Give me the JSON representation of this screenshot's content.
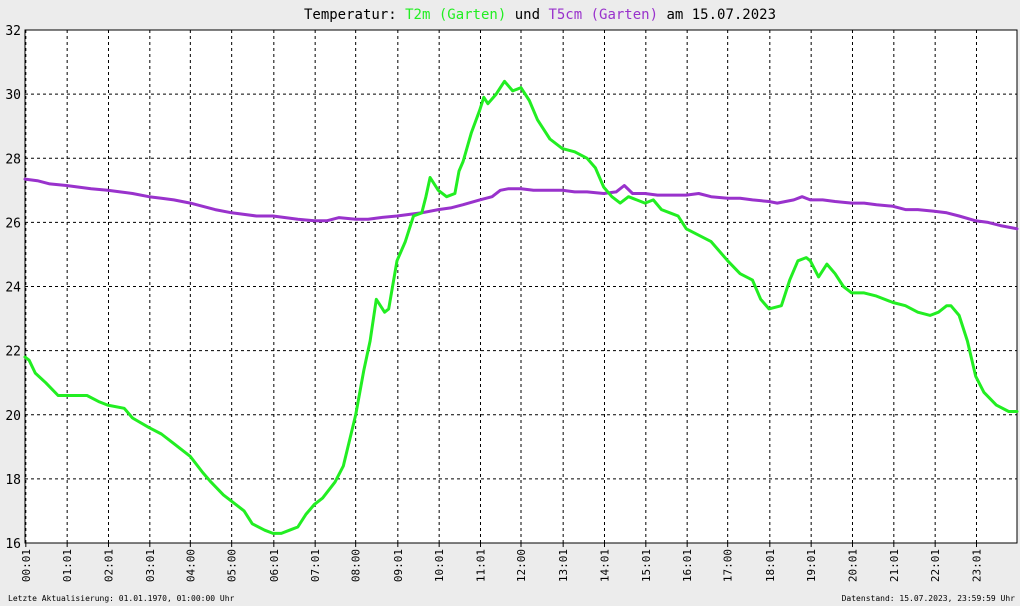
{
  "chart_data": {
    "type": "line",
    "title_parts": [
      {
        "text": "Temperatur: ",
        "color": "#000000"
      },
      {
        "text": "T2m (Garten)",
        "color": "#22ee22"
      },
      {
        "text": " und ",
        "color": "#000000"
      },
      {
        "text": "T5cm (Garten)",
        "color": "#9932cc"
      },
      {
        "text": " am 15.07.2023",
        "color": "#000000"
      }
    ],
    "ylim": [
      16,
      32
    ],
    "y_ticks": [
      16,
      18,
      20,
      22,
      24,
      26,
      28,
      30,
      32
    ],
    "xlim": [
      0,
      24
    ],
    "x_ticks": [
      {
        "pos": 0.02,
        "label": "00:01"
      },
      {
        "pos": 1.02,
        "label": "01:01"
      },
      {
        "pos": 2.02,
        "label": "02:01"
      },
      {
        "pos": 3.02,
        "label": "03:01"
      },
      {
        "pos": 4.0,
        "label": "04:00"
      },
      {
        "pos": 5.0,
        "label": "05:00"
      },
      {
        "pos": 6.02,
        "label": "06:01"
      },
      {
        "pos": 7.02,
        "label": "07:01"
      },
      {
        "pos": 8.0,
        "label": "08:00"
      },
      {
        "pos": 9.02,
        "label": "09:01"
      },
      {
        "pos": 10.02,
        "label": "10:01"
      },
      {
        "pos": 11.02,
        "label": "11:01"
      },
      {
        "pos": 12.0,
        "label": "12:00"
      },
      {
        "pos": 13.02,
        "label": "13:01"
      },
      {
        "pos": 14.02,
        "label": "14:01"
      },
      {
        "pos": 15.02,
        "label": "15:01"
      },
      {
        "pos": 16.02,
        "label": "16:01"
      },
      {
        "pos": 17.0,
        "label": "17:00"
      },
      {
        "pos": 18.02,
        "label": "18:01"
      },
      {
        "pos": 19.02,
        "label": "19:01"
      },
      {
        "pos": 20.02,
        "label": "20:01"
      },
      {
        "pos": 21.02,
        "label": "21:01"
      },
      {
        "pos": 22.02,
        "label": "22:01"
      },
      {
        "pos": 23.02,
        "label": "23:01"
      }
    ],
    "grid": true,
    "series": [
      {
        "name": "T2m (Garten)",
        "color": "#22ee22",
        "x": [
          0,
          0.1,
          0.25,
          0.5,
          0.8,
          1.0,
          1.5,
          1.8,
          2.0,
          2.4,
          2.6,
          3.0,
          3.3,
          3.6,
          4.0,
          4.3,
          4.5,
          4.8,
          5.0,
          5.3,
          5.5,
          5.8,
          6.0,
          6.2,
          6.4,
          6.6,
          6.8,
          7.0,
          7.2,
          7.5,
          7.7,
          8.0,
          8.2,
          8.35,
          8.5,
          8.7,
          8.8,
          9.0,
          9.2,
          9.4,
          9.6,
          9.7,
          9.8,
          10.0,
          10.2,
          10.4,
          10.5,
          10.6,
          10.8,
          11.0,
          11.1,
          11.2,
          11.4,
          11.5,
          11.6,
          11.8,
          12.0,
          12.2,
          12.4,
          12.7,
          13.0,
          13.3,
          13.6,
          13.8,
          14.0,
          14.2,
          14.4,
          14.6,
          14.8,
          15.0,
          15.2,
          15.4,
          15.6,
          15.8,
          16.0,
          16.3,
          16.6,
          17.0,
          17.3,
          17.6,
          17.8,
          18.0,
          18.3,
          18.5,
          18.7,
          18.9,
          19.0,
          19.2,
          19.4,
          19.6,
          19.8,
          20.0,
          20.3,
          20.6,
          21.0,
          21.3,
          21.6,
          21.9,
          22.1,
          22.3,
          22.4,
          22.6,
          22.8,
          23.0,
          23.2,
          23.5,
          23.8,
          24.0
        ],
        "values": [
          21.8,
          21.7,
          21.3,
          21.0,
          20.6,
          20.6,
          20.6,
          20.4,
          20.3,
          20.2,
          19.9,
          19.6,
          19.4,
          19.1,
          18.7,
          18.2,
          17.9,
          17.5,
          17.3,
          17.0,
          16.6,
          16.4,
          16.3,
          16.3,
          16.4,
          16.5,
          16.9,
          17.2,
          17.4,
          17.9,
          18.4,
          20.0,
          21.4,
          22.3,
          23.6,
          23.2,
          23.3,
          24.8,
          25.4,
          26.2,
          26.3,
          26.8,
          27.4,
          27.0,
          26.8,
          26.9,
          27.6,
          27.9,
          28.8,
          29.5,
          29.9,
          29.7,
          30.0,
          30.2,
          30.4,
          30.1,
          30.2,
          29.8,
          29.2,
          28.6,
          28.3,
          28.2,
          28.0,
          27.7,
          27.1,
          26.8,
          26.6,
          26.8,
          26.7,
          26.6,
          26.7,
          26.4,
          26.3,
          26.2,
          25.8,
          25.6,
          25.4,
          24.8,
          24.4,
          24.2,
          23.6,
          23.3,
          23.4,
          24.2,
          24.8,
          24.9,
          24.8,
          24.3,
          24.7,
          24.4,
          24.0,
          23.8,
          23.8,
          23.7,
          23.5,
          23.4,
          23.2,
          23.1,
          23.2,
          23.4,
          23.4,
          23.1,
          22.3,
          21.2,
          20.7,
          20.3,
          20.1,
          20.1
        ]
      },
      {
        "name": "T5cm (Garten)",
        "color": "#9932cc",
        "x": [
          0,
          0.3,
          0.6,
          1.0,
          1.3,
          1.6,
          2.0,
          2.3,
          2.6,
          3.0,
          3.3,
          3.6,
          4.0,
          4.3,
          4.6,
          5.0,
          5.3,
          5.6,
          6.0,
          6.3,
          6.6,
          7.0,
          7.3,
          7.6,
          8.0,
          8.3,
          8.6,
          9.0,
          9.3,
          9.6,
          10.0,
          10.3,
          10.6,
          11.0,
          11.3,
          11.5,
          11.7,
          12.0,
          12.3,
          12.6,
          13.0,
          13.3,
          13.6,
          14.0,
          14.3,
          14.5,
          14.7,
          15.0,
          15.3,
          15.6,
          16.0,
          16.3,
          16.6,
          17.0,
          17.3,
          17.6,
          18.0,
          18.2,
          18.4,
          18.6,
          18.8,
          19.0,
          19.3,
          19.6,
          20.0,
          20.3,
          20.6,
          21.0,
          21.3,
          21.6,
          22.0,
          22.3,
          22.6,
          23.0,
          23.3,
          23.6,
          24.0
        ],
        "values": [
          27.35,
          27.3,
          27.2,
          27.15,
          27.1,
          27.05,
          27.0,
          26.95,
          26.9,
          26.8,
          26.75,
          26.7,
          26.6,
          26.5,
          26.4,
          26.3,
          26.25,
          26.2,
          26.2,
          26.15,
          26.1,
          26.05,
          26.05,
          26.15,
          26.1,
          26.1,
          26.15,
          26.2,
          26.25,
          26.3,
          26.4,
          26.45,
          26.55,
          26.7,
          26.8,
          27.0,
          27.05,
          27.05,
          27.0,
          27.0,
          27.0,
          26.95,
          26.95,
          26.9,
          26.95,
          27.15,
          26.9,
          26.9,
          26.85,
          26.85,
          26.85,
          26.9,
          26.8,
          26.75,
          26.75,
          26.7,
          26.65,
          26.6,
          26.65,
          26.7,
          26.8,
          26.7,
          26.7,
          26.65,
          26.6,
          26.6,
          26.55,
          26.5,
          26.4,
          26.4,
          26.35,
          26.3,
          26.2,
          26.05,
          26.0,
          25.9,
          25.8
        ]
      }
    ]
  },
  "footer": {
    "left": "Letzte Aktualisierung: 01.01.1970, 01:00:00 Uhr",
    "right": "Datenstand: 15.07.2023, 23:59:59 Uhr"
  }
}
